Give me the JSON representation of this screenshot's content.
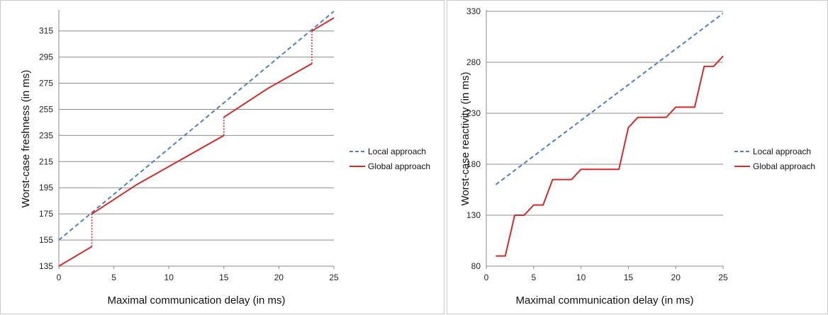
{
  "colors": {
    "local": "#4f81bd",
    "global": "#d42a28",
    "grid": "#8c8c8c",
    "axis": "#888888"
  },
  "chart_data": [
    {
      "type": "line",
      "xlabel": "Maximal communication delay (in ms)",
      "ylabel": "Worst-case freshness (in ms)",
      "xlim": [
        0,
        25
      ],
      "ylim": [
        135,
        330
      ],
      "xticks": [
        0,
        5,
        10,
        15,
        20,
        25
      ],
      "yticks": [
        135,
        155,
        175,
        195,
        215,
        235,
        255,
        275,
        295,
        315
      ],
      "grid": true,
      "legend_position": "right",
      "series": [
        {
          "name": "Local approach",
          "style": "dashed",
          "color": "#4f81bd",
          "x": [
            0,
            25
          ],
          "y": [
            155,
            330
          ]
        },
        {
          "name": "Global approach",
          "style": "solid",
          "color": "#d42a28",
          "x": [
            0,
            3,
            3,
            7,
            15,
            15,
            19,
            23,
            23,
            25
          ],
          "y": [
            135,
            150,
            175,
            197,
            235,
            249,
            271,
            290,
            315,
            325
          ],
          "dotted_jumps_at_x": [
            3,
            15,
            23
          ]
        }
      ]
    },
    {
      "type": "line",
      "xlabel": "Maximal communication delay (in ms)",
      "ylabel": "Worst-case reactivity (in ms)",
      "xlim": [
        0,
        25
      ],
      "ylim": [
        80,
        330
      ],
      "xticks": [
        0,
        5,
        10,
        15,
        20,
        25
      ],
      "yticks": [
        80,
        130,
        180,
        230,
        280,
        330
      ],
      "grid": true,
      "legend_position": "right",
      "series": [
        {
          "name": "Local approach",
          "style": "dashed",
          "color": "#4f81bd",
          "x": [
            1,
            25
          ],
          "y": [
            160,
            328
          ]
        },
        {
          "name": "Global approach",
          "style": "solid",
          "color": "#d42a28",
          "x": [
            1,
            2,
            3,
            4,
            5,
            6,
            7,
            8,
            9,
            10,
            11,
            12,
            13,
            14,
            15,
            16,
            17,
            18,
            19,
            20,
            21,
            22,
            23,
            24,
            25
          ],
          "y": [
            90,
            90,
            130,
            130,
            140,
            140,
            165,
            165,
            165,
            175,
            175,
            175,
            175,
            175,
            216,
            226,
            226,
            226,
            226,
            236,
            236,
            236,
            276,
            276,
            286
          ]
        }
      ]
    }
  ]
}
